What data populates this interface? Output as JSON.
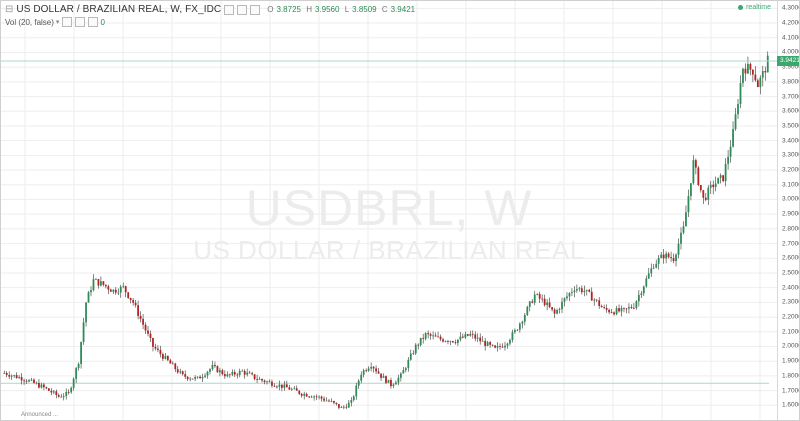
{
  "header": {
    "title": "US DOLLAR / BRAZILIAN REAL, W, FX_IDC",
    "ohlc": {
      "o_label": "O",
      "o_value": "3.8725",
      "h_label": "H",
      "h_value": "3.9560",
      "l_label": "L",
      "l_value": "3.8509",
      "c_label": "C",
      "c_value": "3.9421"
    },
    "volume_label": "Vol (20, false)",
    "volume_value": "0",
    "realtime_label": "realtime"
  },
  "watermark": {
    "symbol": "USDBRL, W",
    "name": "US DOLLAR / BRAZILIAN REAL"
  },
  "bottom_note": "Announced ...",
  "colors": {
    "up": "#2e8b57",
    "down": "#b22222",
    "wick": "#333333",
    "grid": "#eeeeee",
    "price_line": "#a8d8c8",
    "price_tag": "#3aa76d"
  },
  "chart_data": {
    "type": "candlestick",
    "title": "US DOLLAR / BRAZILIAN REAL, W, FX_IDC",
    "ylim": [
      1.5,
      4.35
    ],
    "y_tick_labels": [
      "1.6000",
      "1.7000",
      "1.8000",
      "1.9000",
      "2.0000",
      "2.1000",
      "2.2000",
      "2.3000",
      "2.4000",
      "2.5000",
      "2.6000",
      "2.7000",
      "2.8000",
      "2.9000",
      "3.0000",
      "3.1000",
      "3.2000",
      "3.3000",
      "3.4000",
      "3.5000",
      "3.6000",
      "3.7000",
      "3.8000",
      "3.9000",
      "4.0000",
      "4.1000",
      "4.2000",
      "4.3000"
    ],
    "last_price": "3.9421",
    "reference_line": 1.75,
    "path_points": [
      {
        "i": 0,
        "v": 1.82
      },
      {
        "i": 8,
        "v": 1.78
      },
      {
        "i": 16,
        "v": 1.72
      },
      {
        "i": 22,
        "v": 1.66
      },
      {
        "i": 26,
        "v": 1.68
      },
      {
        "i": 30,
        "v": 1.9
      },
      {
        "i": 33,
        "v": 2.3
      },
      {
        "i": 36,
        "v": 2.45
      },
      {
        "i": 40,
        "v": 2.42
      },
      {
        "i": 44,
        "v": 2.38
      },
      {
        "i": 48,
        "v": 2.4
      },
      {
        "i": 52,
        "v": 2.3
      },
      {
        "i": 56,
        "v": 2.15
      },
      {
        "i": 60,
        "v": 2.0
      },
      {
        "i": 66,
        "v": 1.9
      },
      {
        "i": 72,
        "v": 1.8
      },
      {
        "i": 78,
        "v": 1.78
      },
      {
        "i": 84,
        "v": 1.86
      },
      {
        "i": 90,
        "v": 1.8
      },
      {
        "i": 96,
        "v": 1.83
      },
      {
        "i": 102,
        "v": 1.78
      },
      {
        "i": 108,
        "v": 1.75
      },
      {
        "i": 114,
        "v": 1.72
      },
      {
        "i": 120,
        "v": 1.68
      },
      {
        "i": 126,
        "v": 1.66
      },
      {
        "i": 132,
        "v": 1.62
      },
      {
        "i": 136,
        "v": 1.58
      },
      {
        "i": 140,
        "v": 1.62
      },
      {
        "i": 144,
        "v": 1.82
      },
      {
        "i": 148,
        "v": 1.88
      },
      {
        "i": 152,
        "v": 1.8
      },
      {
        "i": 156,
        "v": 1.74
      },
      {
        "i": 160,
        "v": 1.8
      },
      {
        "i": 166,
        "v": 2.0
      },
      {
        "i": 170,
        "v": 2.08
      },
      {
        "i": 176,
        "v": 2.05
      },
      {
        "i": 182,
        "v": 2.04
      },
      {
        "i": 188,
        "v": 2.08
      },
      {
        "i": 194,
        "v": 2.02
      },
      {
        "i": 198,
        "v": 1.98
      },
      {
        "i": 202,
        "v": 2.02
      },
      {
        "i": 206,
        "v": 2.1
      },
      {
        "i": 210,
        "v": 2.22
      },
      {
        "i": 214,
        "v": 2.35
      },
      {
        "i": 218,
        "v": 2.3
      },
      {
        "i": 222,
        "v": 2.22
      },
      {
        "i": 226,
        "v": 2.32
      },
      {
        "i": 230,
        "v": 2.4
      },
      {
        "i": 234,
        "v": 2.38
      },
      {
        "i": 238,
        "v": 2.32
      },
      {
        "i": 242,
        "v": 2.25
      },
      {
        "i": 246,
        "v": 2.24
      },
      {
        "i": 250,
        "v": 2.24
      },
      {
        "i": 254,
        "v": 2.28
      },
      {
        "i": 258,
        "v": 2.42
      },
      {
        "i": 262,
        "v": 2.56
      },
      {
        "i": 266,
        "v": 2.62
      },
      {
        "i": 270,
        "v": 2.6
      },
      {
        "i": 274,
        "v": 2.8
      },
      {
        "i": 278,
        "v": 3.25
      },
      {
        "i": 282,
        "v": 3.0
      },
      {
        "i": 286,
        "v": 3.1
      },
      {
        "i": 290,
        "v": 3.15
      },
      {
        "i": 294,
        "v": 3.45
      },
      {
        "i": 298,
        "v": 3.9
      },
      {
        "i": 302,
        "v": 3.88
      },
      {
        "i": 304,
        "v": 3.78
      },
      {
        "i": 306,
        "v": 3.85
      },
      {
        "i": 308,
        "v": 3.94
      }
    ],
    "candle_count": 309
  }
}
